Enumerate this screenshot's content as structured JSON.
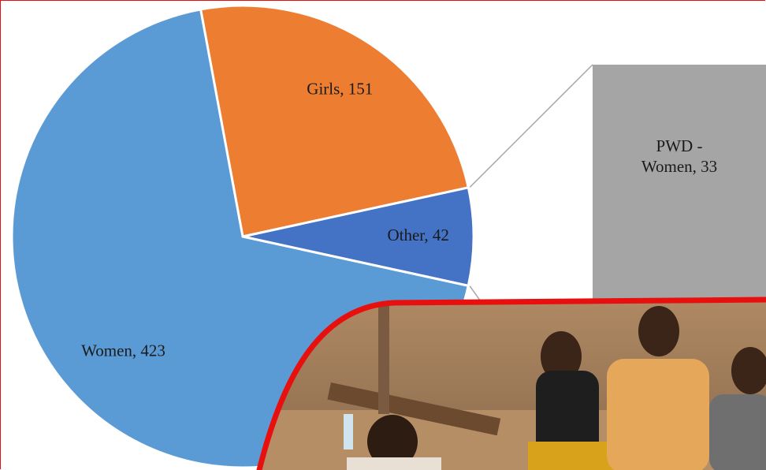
{
  "chart_data": {
    "type": "pie",
    "values": [
      151,
      42,
      423
    ],
    "value_labels": [
      "Girls, 151",
      "Other, 42",
      "Women, 423"
    ],
    "colors": [
      "#ed7d31",
      "#4472c4",
      "#5b9bd5"
    ],
    "breakdown": {
      "type": "bar",
      "values": [
        33
      ],
      "value_labels": [
        "PWD - Women, 33"
      ],
      "color": "#a5a5a5"
    }
  }
}
